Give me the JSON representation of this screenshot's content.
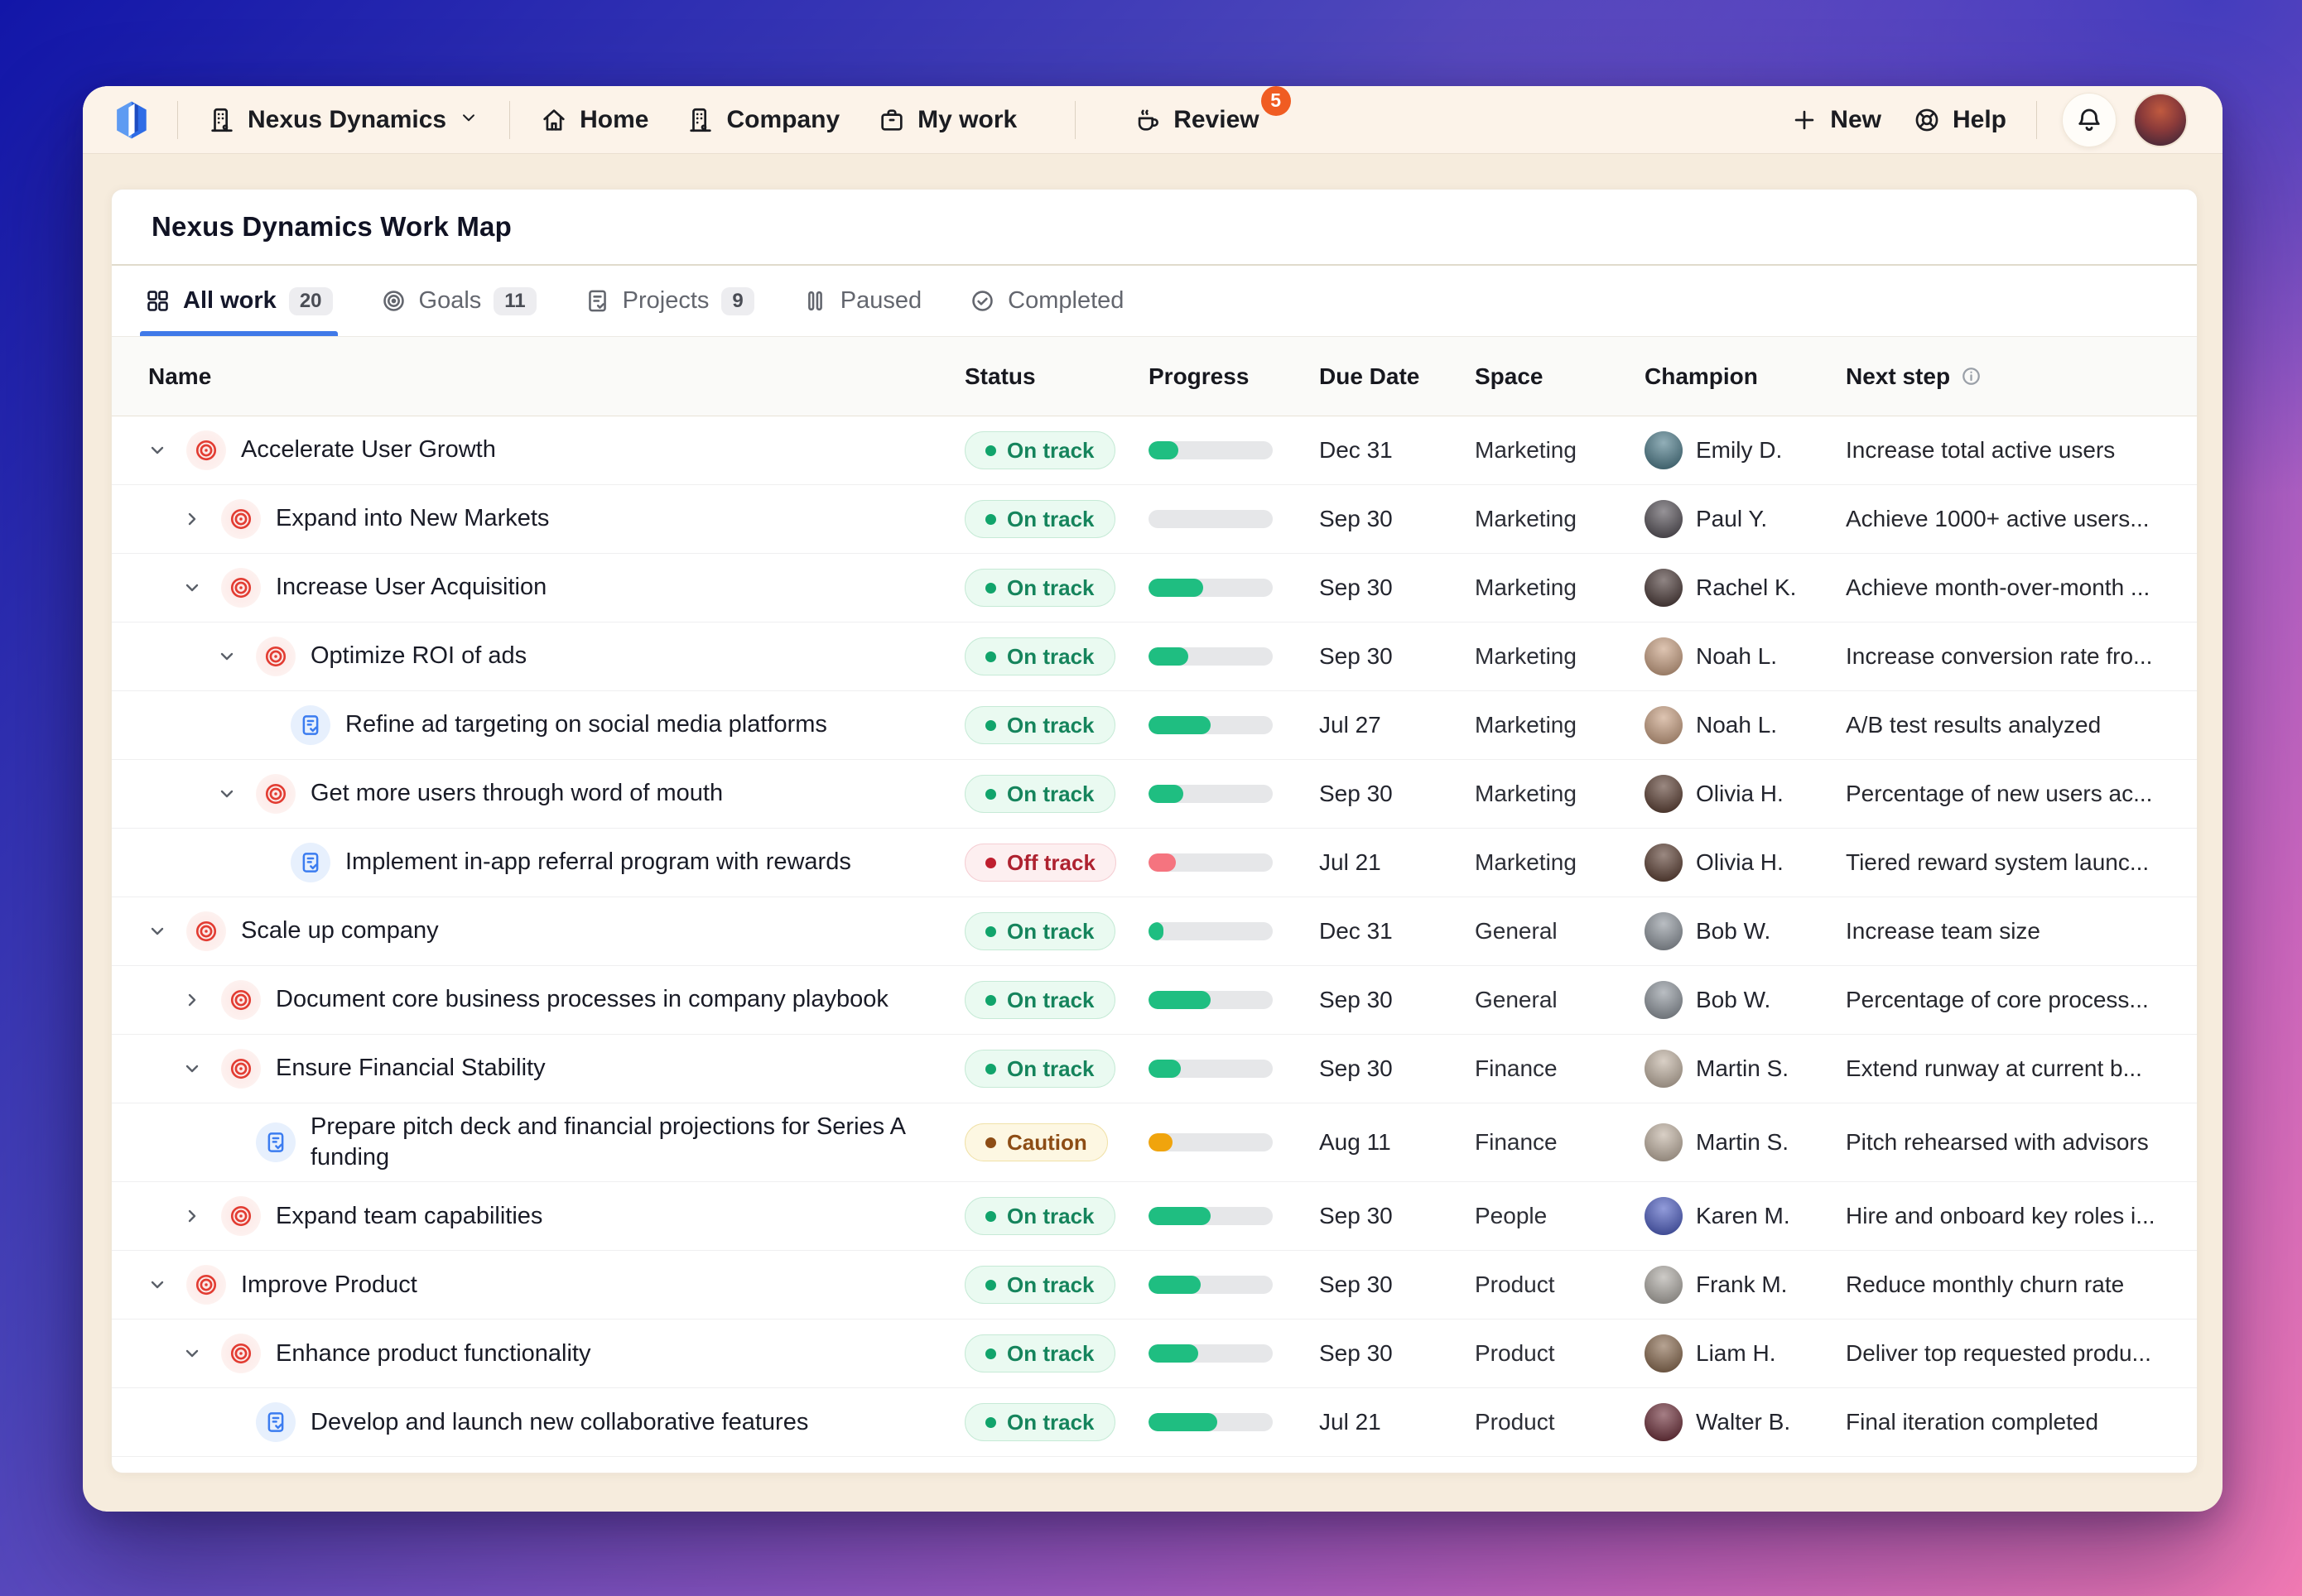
{
  "nav": {
    "brand": "Nexus Dynamics",
    "home_label": "Home",
    "company_label": "Company",
    "my_work_label": "My work",
    "review_label": "Review",
    "review_badge": "5",
    "new_label": "New",
    "help_label": "Help"
  },
  "page": {
    "title": "Nexus Dynamics Work Map"
  },
  "tabs": [
    {
      "label": "All work",
      "count": "20",
      "icon": "grid",
      "active": true
    },
    {
      "label": "Goals",
      "count": "11",
      "icon": "target",
      "active": false
    },
    {
      "label": "Projects",
      "count": "9",
      "icon": "doc",
      "active": false
    },
    {
      "label": "Paused",
      "count": "",
      "icon": "pause",
      "active": false
    },
    {
      "label": "Completed",
      "count": "",
      "icon": "check",
      "active": false
    }
  ],
  "colors": {
    "accent_blue": "#4079e8",
    "nav_cream": "#fcf3e9",
    "review_badge_orange": "#f05c22",
    "goal_icon_red": "#e23c32",
    "project_icon_blue": "#3b7cf0"
  },
  "status_styles": {
    "on-track": {
      "text": "#15845c",
      "bg": "#eafaf1",
      "border": "#c6ead6",
      "dot": "#11a46b",
      "fill": "#1fbe81"
    },
    "off-track": {
      "text": "#ae2230",
      "bg": "#fdeff0",
      "border": "#f5ced3",
      "dot": "#bf1f2f",
      "fill": "#f5747f"
    },
    "caution": {
      "text": "#8d4d15",
      "bg": "#fdf7e2",
      "border": "#f0e1a8",
      "dot": "#8d4d15",
      "fill": "#f0a40d"
    }
  },
  "table": {
    "columns": [
      "Name",
      "Status",
      "Progress",
      "Due Date",
      "Space",
      "Champion",
      "Next step"
    ],
    "rows": [
      {
        "name": "Accelerate User Growth",
        "level": 0,
        "chevron": "down",
        "icon": "goal",
        "state": "on-track",
        "status_label": "On track",
        "progress": 24,
        "due": "Dec 31",
        "space": "Marketing",
        "champion": "Emily D.",
        "avatar_color": "#4e7d8c",
        "next_step": "Increase total active users"
      },
      {
        "name": "Expand into New Markets",
        "level": 1,
        "chevron": "right",
        "icon": "goal",
        "state": "on-track",
        "status_label": "On track",
        "progress": 0,
        "due": "Sep 30",
        "space": "Marketing",
        "champion": "Paul Y.",
        "avatar_color": "#565158",
        "next_step": "Achieve 1000+ active users..."
      },
      {
        "name": "Increase User Acquisition",
        "level": 1,
        "chevron": "down",
        "icon": "goal",
        "state": "on-track",
        "status_label": "On track",
        "progress": 44,
        "due": "Sep 30",
        "space": "Marketing",
        "champion": "Rachel K.",
        "avatar_color": "#4b3a38",
        "next_step": "Achieve month-over-month ..."
      },
      {
        "name": "Optimize ROI of ads",
        "level": 2,
        "chevron": "down",
        "icon": "goal",
        "state": "on-track",
        "status_label": "On track",
        "progress": 32,
        "due": "Sep 30",
        "space": "Marketing",
        "champion": "Noah L.",
        "avatar_color": "#caa183",
        "next_step": "Increase conversion rate fro..."
      },
      {
        "name": "Refine ad targeting on social media platforms",
        "level": 3,
        "chevron": "none",
        "icon": "project",
        "state": "on-track",
        "status_label": "On track",
        "progress": 50,
        "due": "Jul 27",
        "space": "Marketing",
        "champion": "Noah L.",
        "avatar_color": "#caa183",
        "next_step": "A/B test results analyzed"
      },
      {
        "name": "Get more users through word of mouth",
        "level": 2,
        "chevron": "down",
        "icon": "goal",
        "state": "on-track",
        "status_label": "On track",
        "progress": 28,
        "due": "Sep 30",
        "space": "Marketing",
        "champion": "Olivia H.",
        "avatar_color": "#5d4034",
        "next_step": "Percentage of new users ac..."
      },
      {
        "name": "Implement in-app referral program with rewards",
        "level": 3,
        "chevron": "none",
        "icon": "project",
        "state": "off-track",
        "status_label": "Off track",
        "progress": 22,
        "due": "Jul 21",
        "space": "Marketing",
        "champion": "Olivia H.",
        "avatar_color": "#5d4034",
        "next_step": "Tiered reward system launc..."
      },
      {
        "name": "Scale up company",
        "level": 0,
        "chevron": "down",
        "icon": "goal",
        "state": "on-track",
        "status_label": "On track",
        "progress": 12,
        "due": "Dec 31",
        "space": "General",
        "champion": "Bob W.",
        "avatar_color": "#8f969e",
        "next_step": "Increase team size"
      },
      {
        "name": "Document core business processes in company playbook",
        "level": 1,
        "chevron": "right",
        "icon": "goal",
        "state": "on-track",
        "status_label": "On track",
        "progress": 50,
        "due": "Sep 30",
        "space": "General",
        "champion": "Bob W.",
        "avatar_color": "#8f969e",
        "next_step": "Percentage of core process..."
      },
      {
        "name": "Ensure Financial Stability",
        "level": 1,
        "chevron": "down",
        "icon": "goal",
        "state": "on-track",
        "status_label": "On track",
        "progress": 26,
        "due": "Sep 30",
        "space": "Finance",
        "champion": "Martin S.",
        "avatar_color": "#c2b3a3",
        "next_step": "Extend runway at current b..."
      },
      {
        "name": "Prepare pitch deck and financial projections for Series A funding",
        "level": 2,
        "chevron": "none",
        "icon": "project",
        "state": "caution",
        "status_label": "Caution",
        "progress": 19,
        "due": "Aug 11",
        "space": "Finance",
        "champion": "Martin S.",
        "avatar_color": "#c2b3a3",
        "next_step": "Pitch rehearsed with advisors"
      },
      {
        "name": "Expand team capabilities",
        "level": 1,
        "chevron": "right",
        "icon": "goal",
        "state": "on-track",
        "status_label": "On track",
        "progress": 50,
        "due": "Sep 30",
        "space": "People",
        "champion": "Karen M.",
        "avatar_color": "#4f5fc4",
        "next_step": "Hire and onboard key roles i..."
      },
      {
        "name": "Improve Product",
        "level": 0,
        "chevron": "down",
        "icon": "goal",
        "state": "on-track",
        "status_label": "On track",
        "progress": 42,
        "due": "Sep 30",
        "space": "Product",
        "champion": "Frank M.",
        "avatar_color": "#b0aca6",
        "next_step": "Reduce monthly churn rate"
      },
      {
        "name": "Enhance product functionality",
        "level": 1,
        "chevron": "down",
        "icon": "goal",
        "state": "on-track",
        "status_label": "On track",
        "progress": 40,
        "due": "Sep 30",
        "space": "Product",
        "champion": "Liam H.",
        "avatar_color": "#8a6b50",
        "next_step": "Deliver top requested produ..."
      },
      {
        "name": "Develop and launch new collaborative features",
        "level": 2,
        "chevron": "none",
        "icon": "project",
        "state": "on-track",
        "status_label": "On track",
        "progress": 55,
        "due": "Jul 21",
        "space": "Product",
        "champion": "Walter B.",
        "avatar_color": "#6e2f3a",
        "next_step": "Final iteration completed"
      }
    ]
  }
}
